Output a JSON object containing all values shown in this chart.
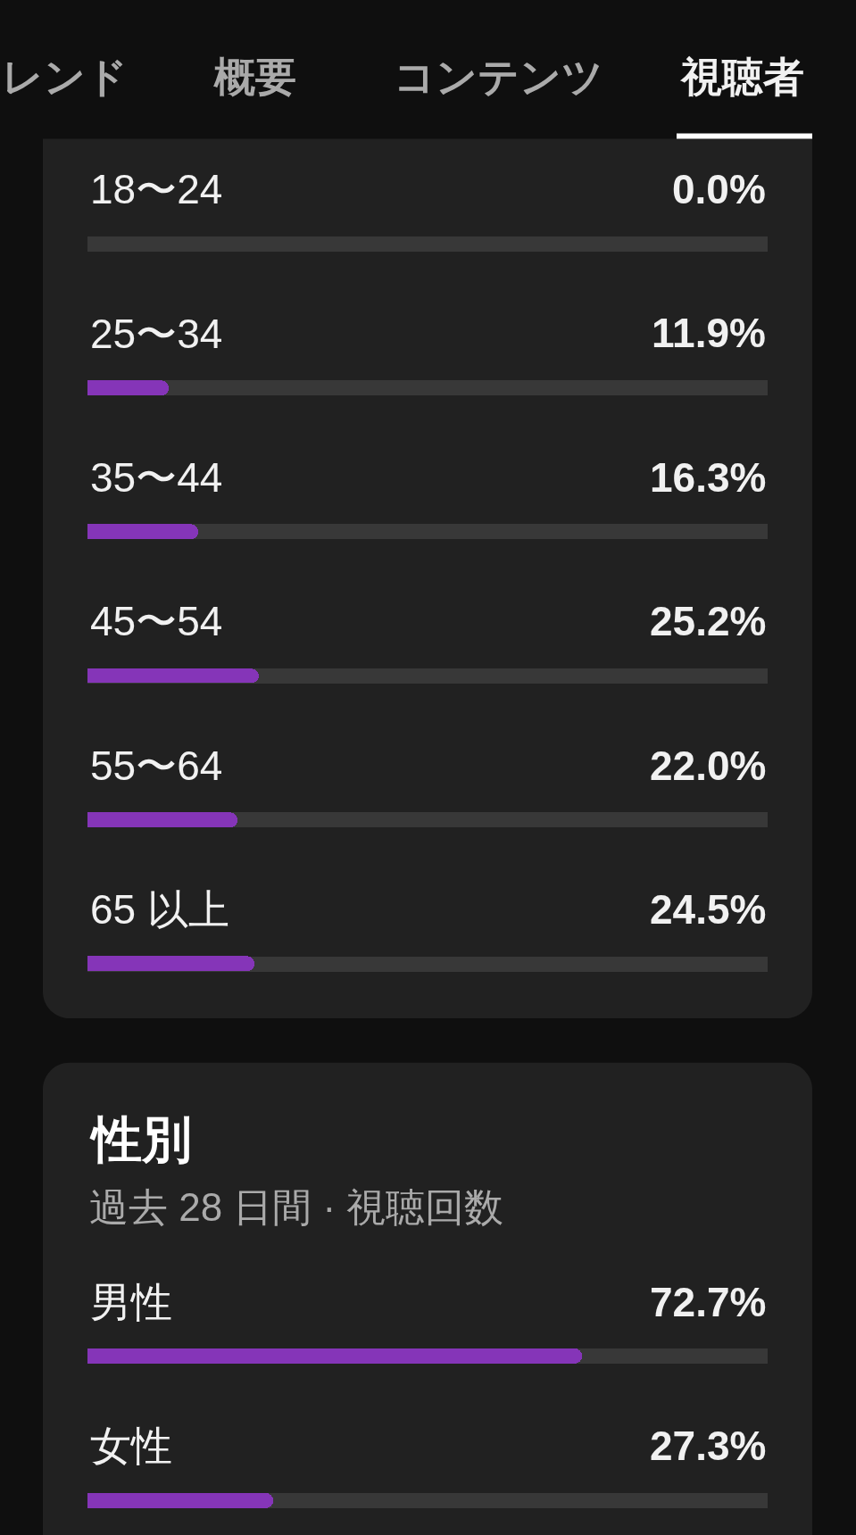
{
  "chart_data": [
    {
      "type": "other",
      "annotations": [
        "レンド",
        "概要",
        "コンテンツ",
        "視聴者"
      ]
    },
    {
      "type": "bar",
      "orientation": "horizontal",
      "categories": [
        "18〜24",
        "25〜34",
        "35〜44",
        "45〜54",
        "55〜64",
        "65 以上"
      ],
      "values": [
        0.0,
        11.9,
        16.3,
        25.2,
        22.0,
        24.5
      ],
      "value_labels": [
        "0.0%",
        "11.9%",
        "16.3%",
        "25.2%",
        "22.0%",
        "24.5%"
      ],
      "color": "#8535b8",
      "xlim": [
        0,
        100
      ],
      "tick_labels": "y",
      "grid": "y"
    },
    {
      "type": "bar",
      "orientation": "horizontal",
      "title": "性別",
      "subtitle": "過去 28 日間 · 視聴回数",
      "categories": [
        "男性",
        "女性"
      ],
      "values": [
        72.7,
        27.3
      ],
      "value_labels": [
        "72.7%",
        "27.3%"
      ],
      "color": "#8535b8",
      "xlim": [
        0,
        100
      ],
      "tick_labels": "y",
      "grid": "y"
    }
  ]
}
